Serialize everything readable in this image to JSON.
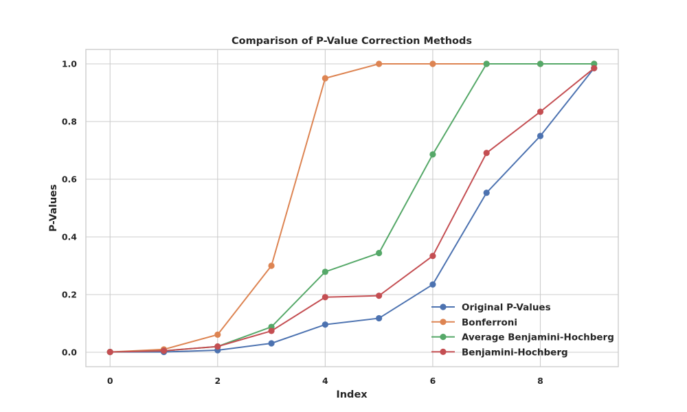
{
  "chart_data": {
    "type": "line",
    "title": "Comparison of P-Value Correction Methods",
    "xlabel": "Index",
    "ylabel": "P-Values",
    "xlim": [
      -0.45,
      9.45
    ],
    "ylim": [
      -0.05,
      1.05
    ],
    "x_ticks": [
      0,
      2,
      4,
      6,
      8
    ],
    "y_ticks": [
      0.0,
      0.2,
      0.4,
      0.6,
      0.8,
      1.0
    ],
    "x_tick_labels": [
      "0",
      "2",
      "4",
      "6",
      "8"
    ],
    "y_tick_labels": [
      "0.0",
      "0.2",
      "0.4",
      "0.6",
      "0.8",
      "1.0"
    ],
    "grid": true,
    "legend_position": "lower-right",
    "x": [
      0,
      1,
      2,
      3,
      4,
      5,
      6,
      7,
      8,
      9
    ],
    "series": [
      {
        "name": "Original P-Values",
        "color": "#4c72b0",
        "marker": "circle",
        "values": [
          0.001,
          0.001,
          0.007,
          0.031,
          0.096,
          0.118,
          0.235,
          0.553,
          0.75,
          0.985
        ]
      },
      {
        "name": "Bonferroni",
        "color": "#dd8452",
        "marker": "circle",
        "values": [
          0.001,
          0.01,
          0.061,
          0.3,
          0.95,
          1.0,
          1.0,
          1.0,
          1.0,
          1.0
        ]
      },
      {
        "name": "Average Benjamini-Hochberg",
        "color": "#55a868",
        "marker": "circle",
        "values": [
          0.001,
          0.005,
          0.02,
          0.088,
          0.279,
          0.344,
          0.686,
          1.0,
          1.0,
          1.0
        ]
      },
      {
        "name": "Benjamini-Hochberg",
        "color": "#c44e52",
        "marker": "circle",
        "values": [
          0.001,
          0.005,
          0.02,
          0.074,
          0.191,
          0.196,
          0.334,
          0.691,
          0.834,
          0.985
        ]
      }
    ]
  }
}
